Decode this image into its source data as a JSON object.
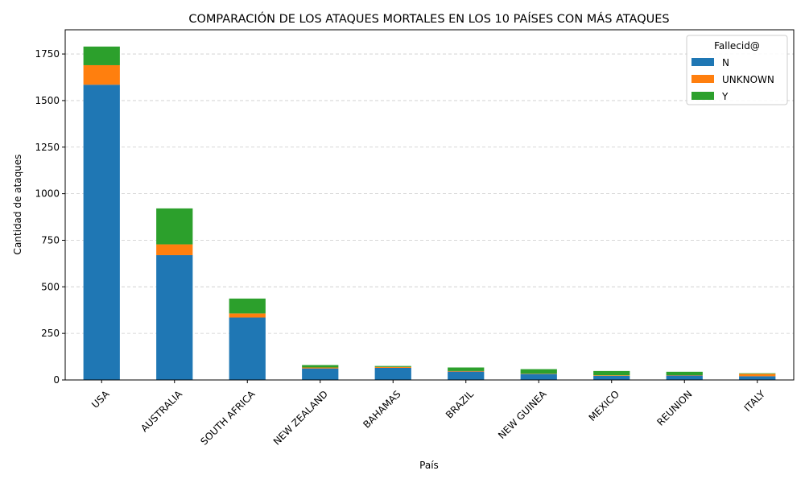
{
  "chart_data": {
    "type": "bar",
    "stacked": true,
    "title": "COMPARACIÓN DE LOS ATAQUES MORTALES EN LOS 10 PAÍSES CON MÁS ATAQUES",
    "xlabel": "País",
    "ylabel": "Cantidad de ataques",
    "categories": [
      "USA",
      "AUSTRALIA",
      "SOUTH AFRICA",
      "NEW ZEALAND",
      "BAHAMAS",
      "BRAZIL",
      "NEW GUINEA",
      "MEXICO",
      "REUNION",
      "ITALY"
    ],
    "series": [
      {
        "name": "N",
        "color": "#1f77b4",
        "values": [
          1585,
          670,
          335,
          62,
          65,
          45,
          32,
          22,
          24,
          20
        ]
      },
      {
        "name": "UNKNOWN",
        "color": "#ff7f0e",
        "values": [
          105,
          58,
          22,
          5,
          5,
          3,
          2,
          3,
          2,
          13
        ]
      },
      {
        "name": "Y",
        "color": "#2ca02c",
        "values": [
          100,
          193,
          80,
          13,
          5,
          19,
          24,
          23,
          18,
          3
        ]
      }
    ],
    "ylim": [
      0,
      1880
    ],
    "yticks": [
      0,
      250,
      500,
      750,
      1000,
      1250,
      1500,
      1750
    ],
    "grid": "y",
    "legend": {
      "title": "Fallecid@",
      "position": "top-right"
    }
  }
}
